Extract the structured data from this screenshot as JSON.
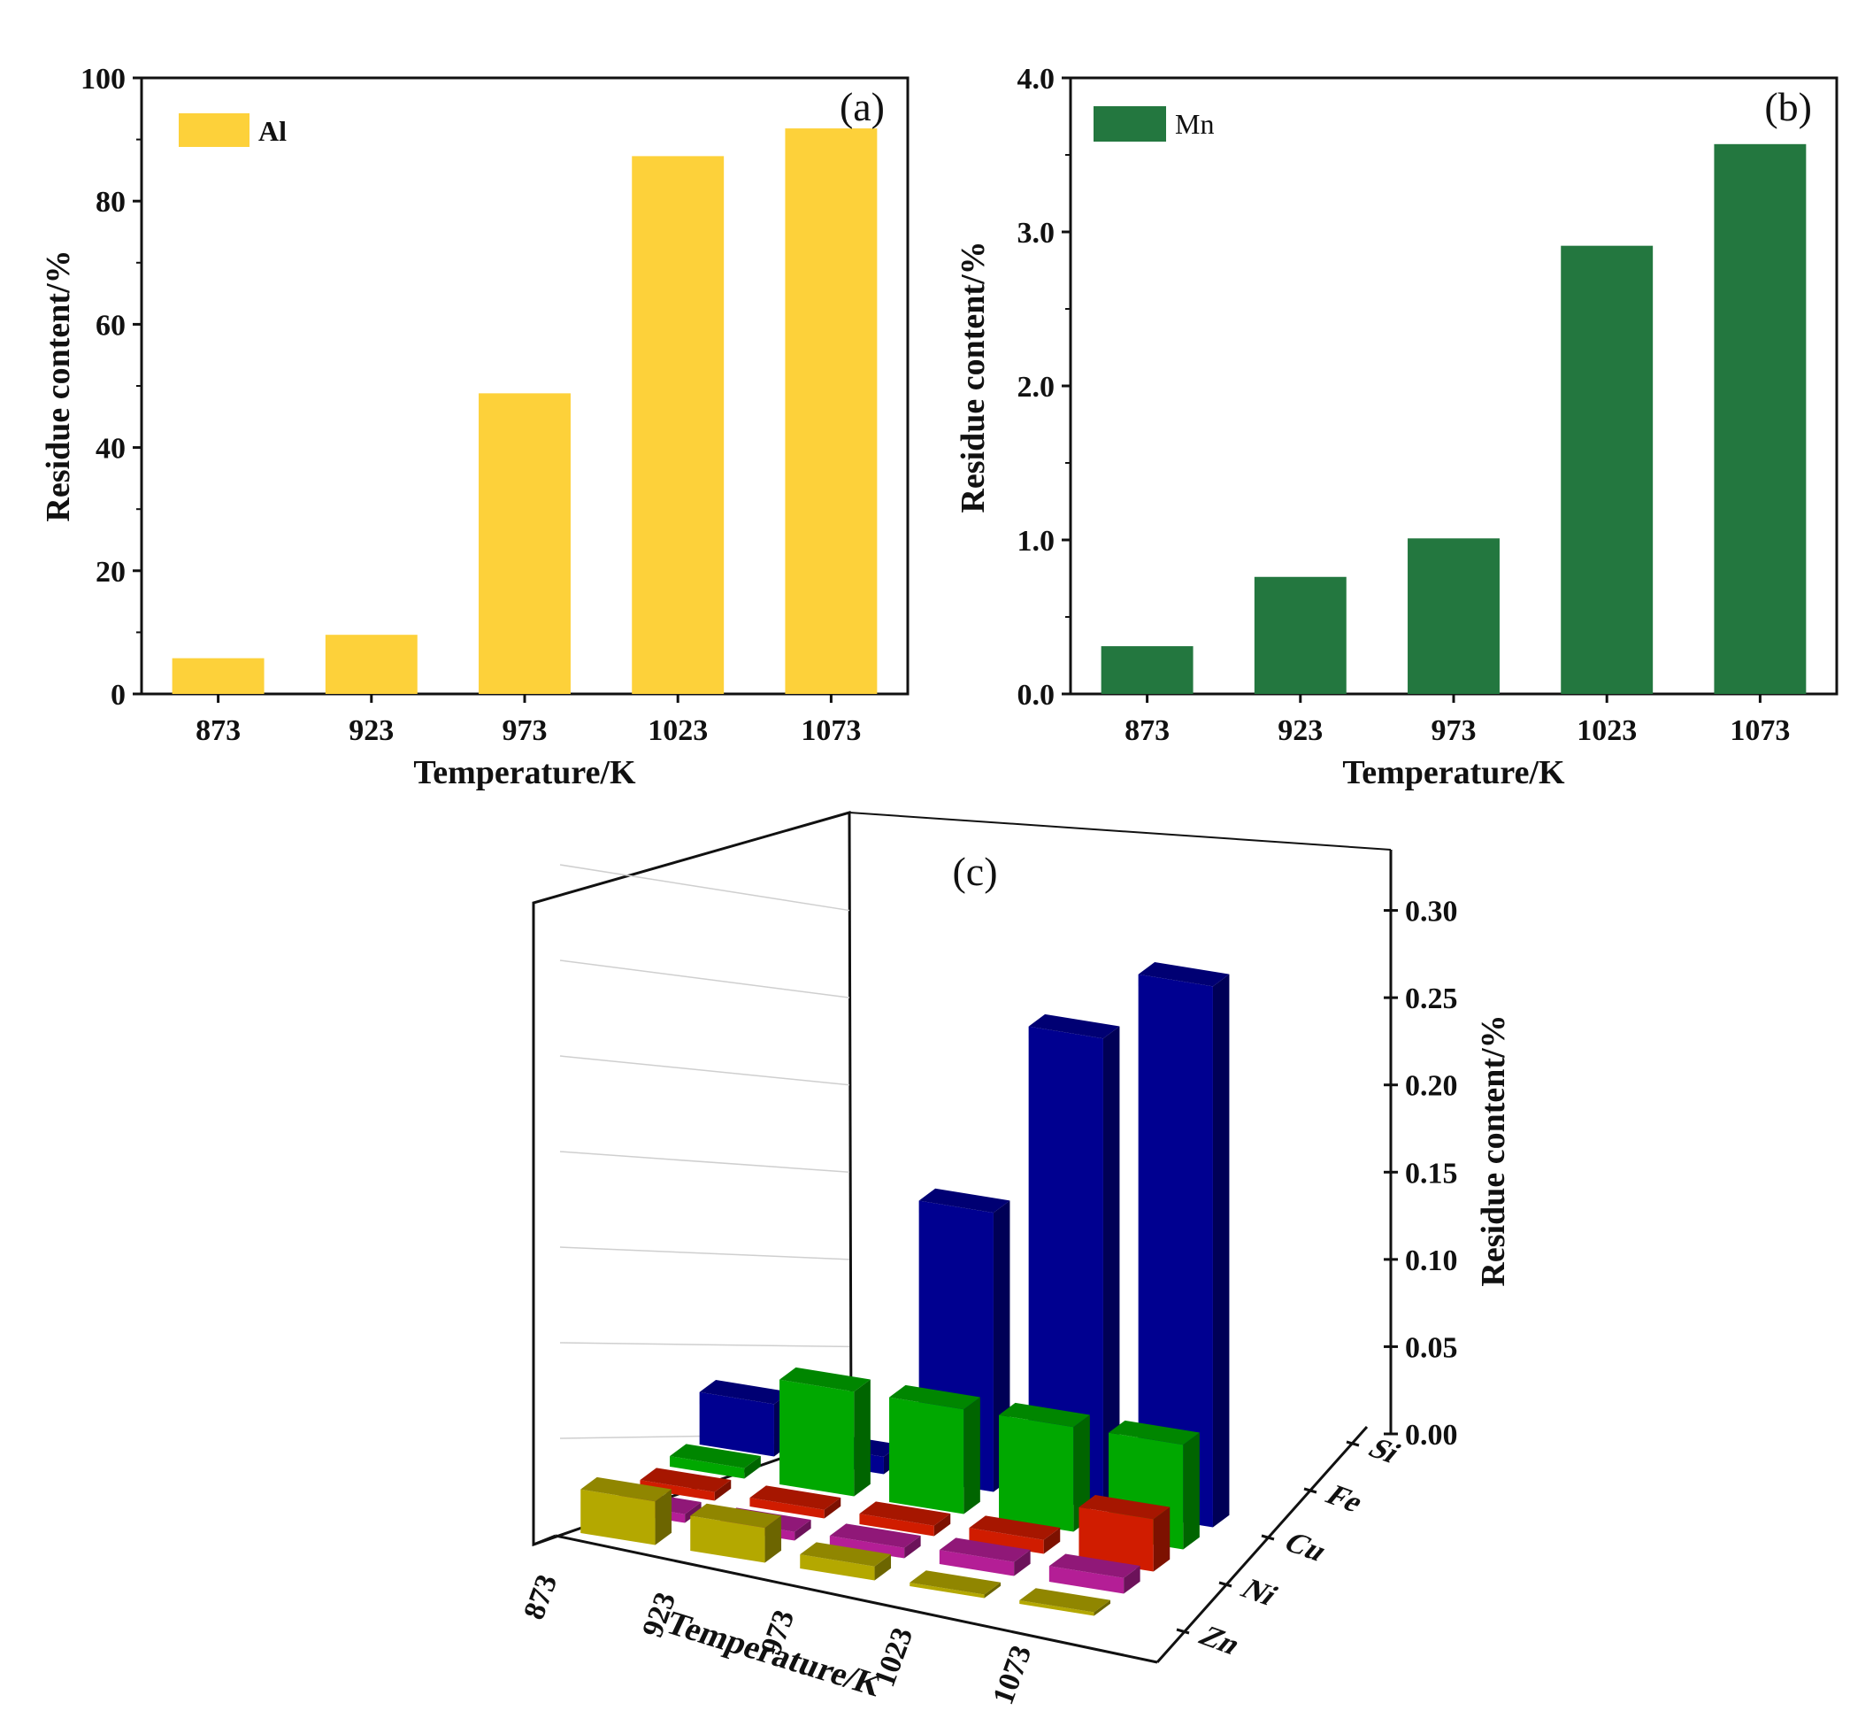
{
  "chart_data": [
    {
      "id": "a",
      "type": "bar",
      "panel_label": "(a)",
      "categories": [
        "873",
        "923",
        "973",
        "1023",
        "1073"
      ],
      "series": [
        {
          "name": "Al",
          "values": [
            5.8,
            9.6,
            48.8,
            87.3,
            91.8
          ],
          "color": "#FDD13A"
        }
      ],
      "xlabel": "Temperature/K",
      "ylabel": "Residue content/%",
      "ylim": [
        0,
        100
      ],
      "yticks": [
        "0",
        "20",
        "40",
        "60",
        "80",
        "100"
      ],
      "legend": "top-left"
    },
    {
      "id": "b",
      "type": "bar",
      "panel_label": "(b)",
      "categories": [
        "873",
        "923",
        "973",
        "1023",
        "1073"
      ],
      "series": [
        {
          "name": "Mn",
          "values": [
            0.31,
            0.76,
            1.01,
            2.91,
            3.57
          ],
          "color": "#23773F"
        }
      ],
      "xlabel": "Temperature/K",
      "ylabel": "Residue content/%",
      "ylim": [
        0,
        4
      ],
      "yticks": [
        "0.0",
        "1.0",
        "2.0",
        "3.0",
        "4.0"
      ],
      "legend": "top-left"
    },
    {
      "id": "c",
      "type": "bar",
      "subtype": "3d",
      "panel_label": "(c)",
      "categories": [
        "873",
        "923",
        "973",
        "1023",
        "1073"
      ],
      "series": [
        {
          "name": "Si",
          "values": [
            0.03,
            0.01,
            0.16,
            0.27,
            0.31
          ],
          "color": "#000090"
        },
        {
          "name": "Fe",
          "values": [
            0.006,
            0.06,
            0.06,
            0.06,
            0.06
          ],
          "color": "#00A800"
        },
        {
          "name": "Cu",
          "values": [
            0.005,
            0.005,
            0.006,
            0.008,
            0.03
          ],
          "color": "#D01C00"
        },
        {
          "name": "Ni",
          "values": [
            0.005,
            0.005,
            0.006,
            0.008,
            0.009
          ],
          "color": "#B41E96"
        },
        {
          "name": "Zn",
          "values": [
            0.025,
            0.02,
            0.008,
            0.001,
            0.001
          ],
          "color": "#B4A800"
        }
      ],
      "xlabel": "Temperature/K",
      "zlabel": "Residue content/%",
      "zlim": [
        0,
        0.35
      ],
      "zticks": [
        "0.00",
        "0.05",
        "0.10",
        "0.15",
        "0.20",
        "0.25",
        "0.30"
      ]
    }
  ]
}
